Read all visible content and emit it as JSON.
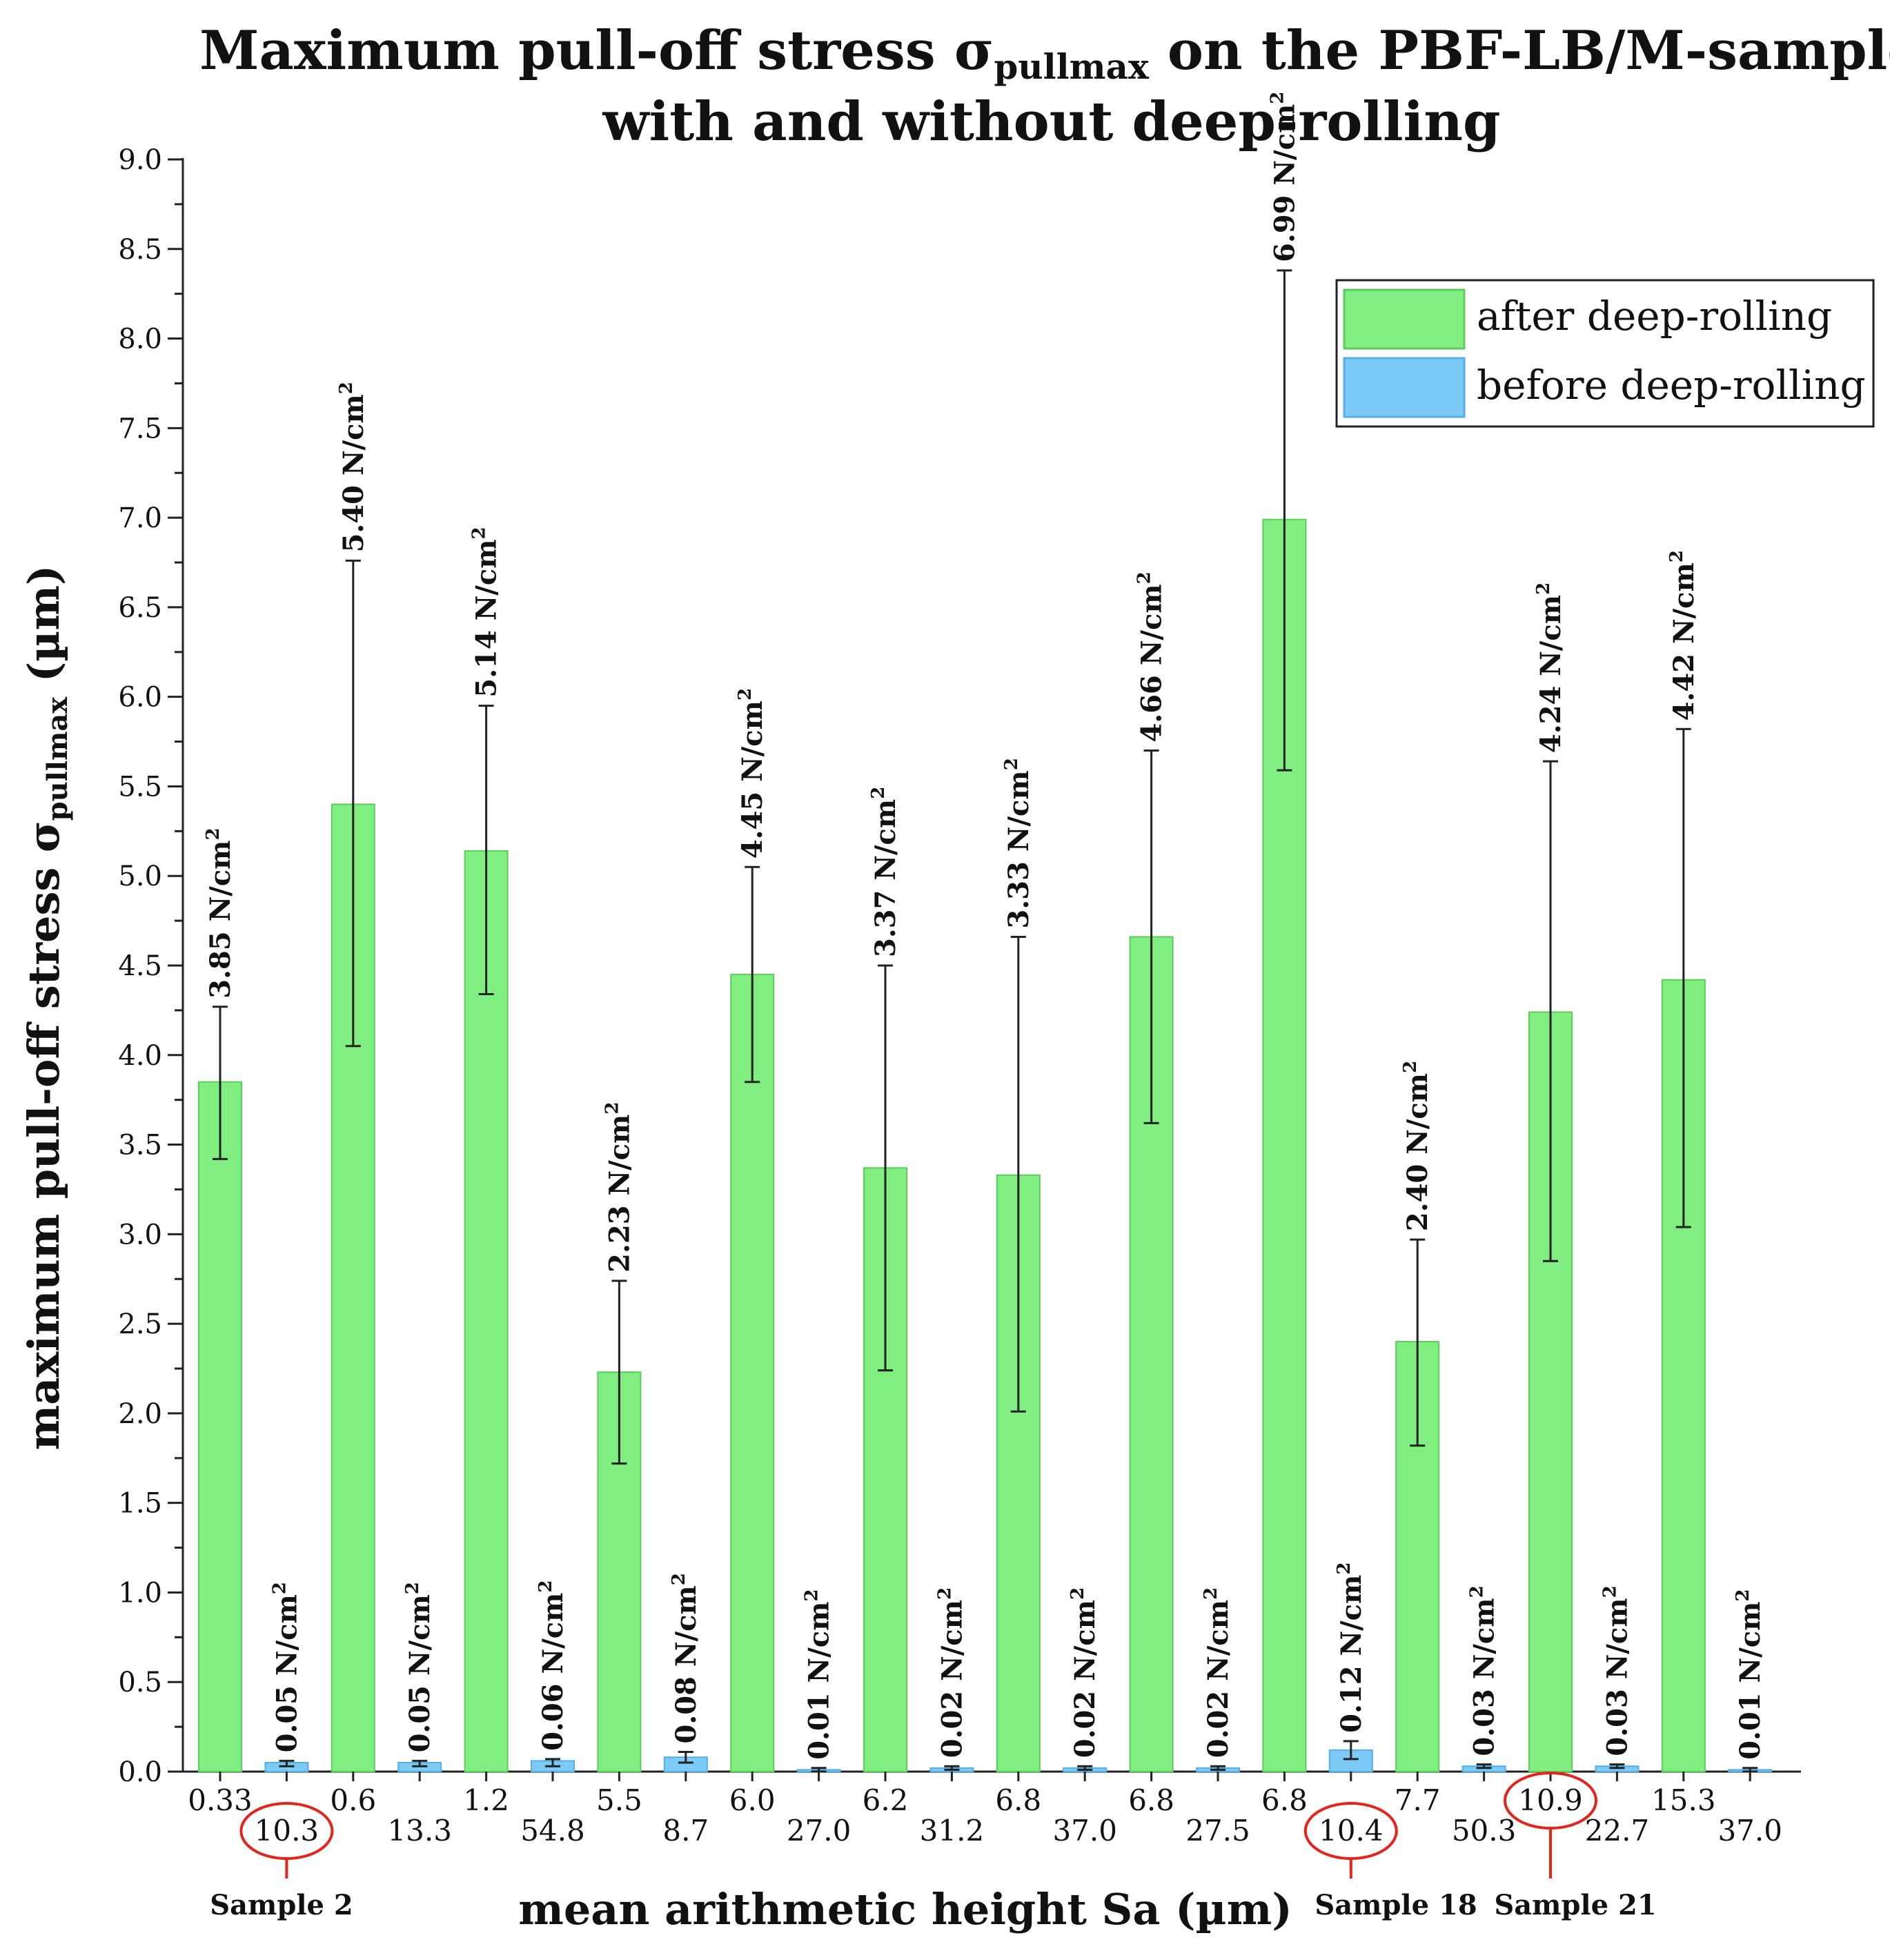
{
  "chart_data": {
    "type": "bar",
    "title": "Maximum pull-off stress σ",
    "title_subscript": "pullmax",
    "title_rest": " on the PBF-LB/M-samples",
    "title_line2": "with and without deep-rolling",
    "ylabel": "maximum pull-off stress σ",
    "ylabel_subscript": "pullmax",
    "ylabel_unit": " (µm)",
    "xlabel": "mean arithmetic height Sa (µm)",
    "ylim": [
      0,
      9.0
    ],
    "y_ticks": [
      "0.0",
      "0.5",
      "1.0",
      "1.5",
      "2.0",
      "2.5",
      "3.0",
      "3.5",
      "4.0",
      "4.5",
      "5.0",
      "5.5",
      "6.0",
      "6.5",
      "7.0",
      "7.5",
      "8.0",
      "8.5",
      "9.0"
    ],
    "categories": [
      "0.33",
      "10.3",
      "0.6",
      "13.3",
      "1.2",
      "54.8",
      "5.5",
      "8.7",
      "6.0",
      "27.0",
      "6.2",
      "31.2",
      "6.8",
      "37.0",
      "6.8",
      "27.5",
      "6.8",
      "10.4",
      "7.7",
      "50.3",
      "10.9",
      "22.7",
      "15.3",
      "37.0"
    ],
    "series_index": [
      0,
      1,
      0,
      1,
      0,
      1,
      0,
      1,
      0,
      1,
      0,
      1,
      0,
      1,
      0,
      1,
      0,
      1,
      0,
      1,
      0,
      1,
      0,
      1
    ],
    "values": [
      3.85,
      0.05,
      5.4,
      0.05,
      5.14,
      0.06,
      2.23,
      0.08,
      4.45,
      0.01,
      3.37,
      0.02,
      3.33,
      0.02,
      4.66,
      0.02,
      6.99,
      0.12,
      2.4,
      0.03,
      4.24,
      0.03,
      4.42,
      0.01
    ],
    "error_low": [
      3.42,
      0.03,
      4.05,
      0.03,
      4.34,
      0.03,
      1.72,
      0.05,
      3.85,
      0.0,
      2.24,
      0.01,
      2.01,
      0.01,
      3.62,
      0.01,
      5.59,
      0.07,
      1.82,
      0.02,
      2.85,
      0.02,
      3.04,
      0.0
    ],
    "error_high": [
      4.27,
      0.06,
      6.76,
      0.06,
      5.95,
      0.07,
      2.74,
      0.11,
      5.05,
      0.02,
      4.5,
      0.03,
      4.66,
      0.03,
      5.7,
      0.03,
      8.38,
      0.17,
      2.97,
      0.04,
      5.64,
      0.04,
      5.82,
      0.02
    ],
    "data_labels": [
      "3.85 N/cm",
      "0.05 N/cm",
      "5.40 N/cm",
      "0.05 N/cm",
      "5.14 N/cm",
      "0.06 N/cm",
      "2.23 N/cm",
      "0.08 N/cm",
      "4.45 N/cm",
      "0.01 N/cm",
      "3.37 N/cm",
      "0.02 N/cm",
      "3.33 N/cm",
      "0.02 N/cm",
      "4.66 N/cm",
      "0.02 N/cm",
      "6.99 N/cm",
      "0.12 N/cm",
      "2.40 N/cm",
      "0.03 N/cm",
      "4.24 N/cm",
      "0.03 N/cm",
      "4.42 N/cm",
      "0.01 N/cm"
    ],
    "unit_superscript": "2",
    "series": [
      {
        "name": "after deep-rolling",
        "color": "#80ee80",
        "edge": "#5ccc5c"
      },
      {
        "name": "before deep-rolling",
        "color": "#7ccaf6",
        "edge": "#55aee6"
      }
    ],
    "legend_position": "top-right",
    "highlighted_categories": [
      1,
      17,
      20
    ],
    "annotations": [
      "Sample 2",
      "Sample 18",
      "Sample 21"
    ],
    "highlight_color": "#e5231b"
  }
}
